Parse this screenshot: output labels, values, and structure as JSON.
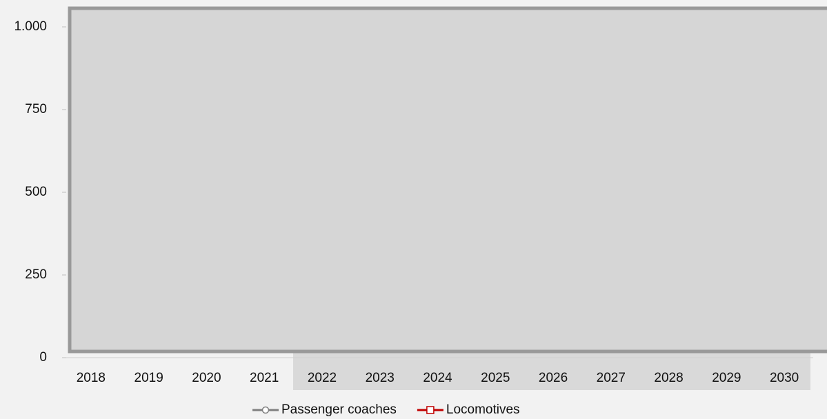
{
  "chart_data": {
    "type": "line",
    "categories": [
      "2018",
      "2019",
      "2020",
      "2021",
      "2022",
      "2023",
      "2024",
      "2025",
      "2026",
      "2027",
      "2028",
      "2029",
      "2030"
    ],
    "series": [
      {
        "name": "Passenger coaches",
        "color": "#7f7f7f",
        "marker": "circle",
        "values": [
          null,
          null,
          null,
          null,
          null,
          null,
          null,
          null,
          null,
          null,
          null,
          null,
          null
        ]
      },
      {
        "name": "Locomotives",
        "color": "#c00000",
        "marker": "square",
        "values": [
          null,
          null,
          null,
          null,
          null,
          null,
          null,
          null,
          null,
          null,
          null,
          null,
          null
        ]
      }
    ],
    "ylim": [
      0,
      1000
    ],
    "yticks": [
      0,
      250,
      500,
      750,
      {
        "value": 1000,
        "label": "1.000"
      }
    ],
    "legend": "bottom"
  }
}
